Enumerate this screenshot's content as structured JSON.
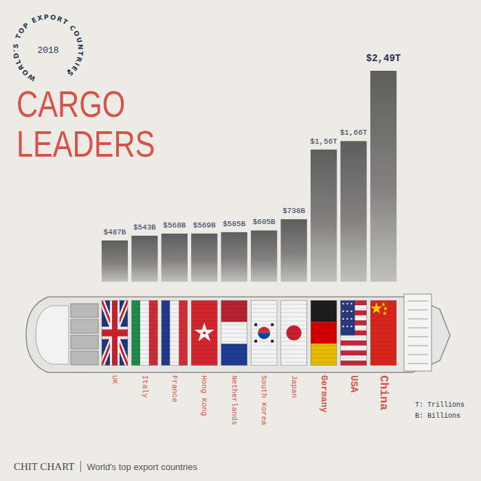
{
  "chart_data": {
    "type": "bar",
    "title": "CARGO LEADERS",
    "categories": [
      "UK",
      "Italy",
      "France",
      "Hong Kong",
      "Netherlands",
      "South Korea",
      "Japan",
      "Germany",
      "USA",
      "China"
    ],
    "values": [
      487,
      543,
      568,
      569,
      585,
      605,
      738,
      1560,
      1660,
      2490
    ],
    "value_labels": [
      "$487B",
      "$543B",
      "$568B",
      "$569B",
      "$585B",
      "$605B",
      "$738B",
      "$1,56T",
      "$1,66T",
      "$2,49T"
    ],
    "color": "#5e5e5c",
    "ylim": [
      0,
      2490
    ],
    "tick_labels": false,
    "data_labels": true,
    "annotations": {
      "badge": "WORLD'S TOP EXPORT COUNTRIES",
      "year": "2018",
      "units": [
        "T: Trillions",
        "B: Billions"
      ],
      "brand": "CHIT CHART",
      "caption": "World's top export countries"
    }
  }
}
